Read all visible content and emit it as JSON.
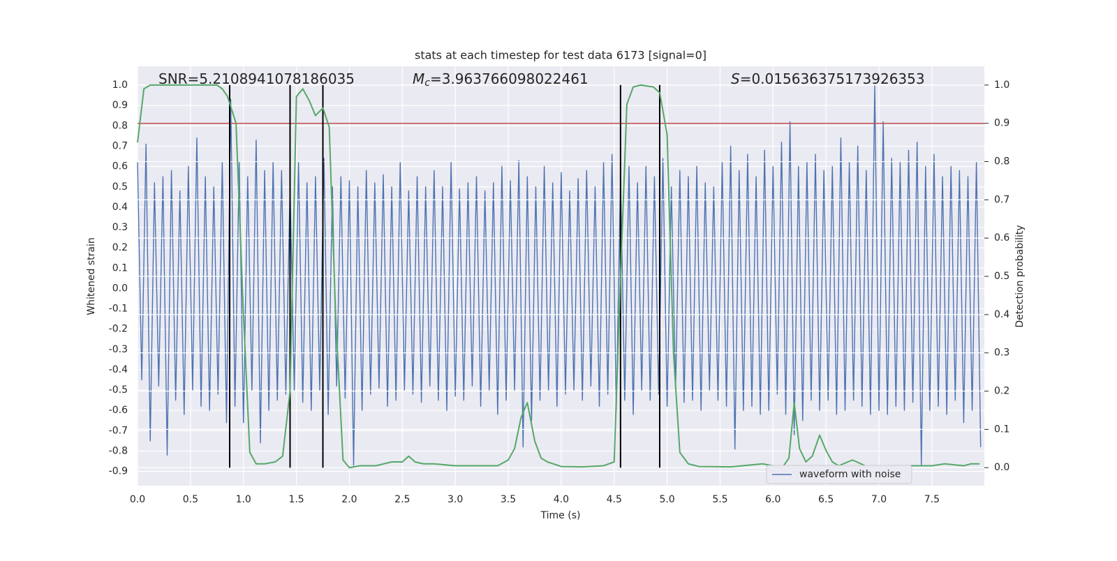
{
  "chart_data": {
    "type": "line",
    "title": "stats at each timestep for test data 6173 [signal=0]",
    "xlabel": "Time (s)",
    "ylabel": "Whitened strain",
    "y2label": "Detection probability",
    "annotations": [
      {
        "symbol": "",
        "subscript": "",
        "text": "SNR=5.2108941078186035"
      },
      {
        "symbol": "M",
        "subscript": "c",
        "text": "=3.963766098022461"
      },
      {
        "symbol": "S",
        "subscript": "",
        "text": "=0.015636375173926353"
      }
    ],
    "xlim": [
      0,
      7.995
    ],
    "xticks": [
      0.0,
      0.5,
      1.0,
      1.5,
      2.0,
      2.5,
      3.0,
      3.5,
      4.0,
      4.5,
      5.0,
      5.5,
      6.0,
      6.5,
      7.0,
      7.5
    ],
    "ylim": [
      -0.97,
      1.093
    ],
    "yticks": [
      -0.9,
      -0.8,
      -0.7,
      -0.6,
      -0.5,
      -0.4,
      -0.3,
      -0.2,
      -0.1,
      0.0,
      0.1,
      0.2,
      0.3,
      0.4,
      0.5,
      0.6,
      0.7,
      0.8,
      0.9,
      1.0
    ],
    "y2lim": [
      -0.047,
      1.049
    ],
    "y2ticks": [
      0.0,
      0.1,
      0.2,
      0.3,
      0.4,
      0.5,
      0.6,
      0.7,
      0.8,
      0.9,
      1.0
    ],
    "grid": true,
    "legend": "lower right",
    "background": "#eaeaf2",
    "series": [
      {
        "name": "waveform with noise",
        "color": "#4c72b0",
        "x": [
          0,
          0.04,
          0.08,
          0.12,
          0.16,
          0.2,
          0.24,
          0.28,
          0.32,
          0.36,
          0.4,
          0.44,
          0.48,
          0.52,
          0.56,
          0.6,
          0.64,
          0.68,
          0.72,
          0.76,
          0.8,
          0.84,
          0.88,
          0.92,
          0.96,
          1.0,
          1.04,
          1.08,
          1.12,
          1.16,
          1.2,
          1.24,
          1.28,
          1.32,
          1.36,
          1.4,
          1.44,
          1.48,
          1.52,
          1.56,
          1.6,
          1.64,
          1.68,
          1.72,
          1.76,
          1.8,
          1.84,
          1.88,
          1.92,
          1.96,
          2.0,
          2.04,
          2.08,
          2.12,
          2.16,
          2.2,
          2.24,
          2.28,
          2.32,
          2.36,
          2.4,
          2.44,
          2.48,
          2.52,
          2.56,
          2.6,
          2.64,
          2.68,
          2.72,
          2.76,
          2.8,
          2.84,
          2.88,
          2.92,
          2.96,
          3.0,
          3.04,
          3.08,
          3.12,
          3.16,
          3.2,
          3.24,
          3.28,
          3.32,
          3.36,
          3.4,
          3.44,
          3.48,
          3.52,
          3.56,
          3.6,
          3.64,
          3.68,
          3.72,
          3.76,
          3.8,
          3.84,
          3.88,
          3.92,
          3.96,
          4.0,
          4.04,
          4.08,
          4.12,
          4.16,
          4.2,
          4.24,
          4.28,
          4.32,
          4.36,
          4.4,
          4.44,
          4.48,
          4.52,
          4.56,
          4.6,
          4.64,
          4.68,
          4.72,
          4.76,
          4.8,
          4.84,
          4.88,
          4.92,
          4.96,
          5.0,
          5.04,
          5.08,
          5.12,
          5.16,
          5.2,
          5.24,
          5.28,
          5.32,
          5.36,
          5.4,
          5.44,
          5.48,
          5.52,
          5.56,
          5.6,
          5.64,
          5.68,
          5.72,
          5.76,
          5.8,
          5.84,
          5.88,
          5.92,
          5.96,
          6.0,
          6.04,
          6.08,
          6.12,
          6.16,
          6.2,
          6.24,
          6.28,
          6.32,
          6.36,
          6.4,
          6.44,
          6.48,
          6.52,
          6.56,
          6.6,
          6.64,
          6.68,
          6.72,
          6.76,
          6.8,
          6.84,
          6.88,
          6.92,
          6.96,
          7.0,
          7.04,
          7.08,
          7.12,
          7.16,
          7.2,
          7.24,
          7.28,
          7.32,
          7.36,
          7.4,
          7.44,
          7.48,
          7.52,
          7.56,
          7.6,
          7.64,
          7.68,
          7.72,
          7.76,
          7.8,
          7.84,
          7.88,
          7.92,
          7.96
        ],
        "values": [
          0.62,
          -0.45,
          0.71,
          -0.75,
          0.52,
          -0.48,
          0.55,
          -0.82,
          0.58,
          -0.55,
          0.48,
          -0.62,
          0.6,
          -0.5,
          0.74,
          -0.58,
          0.55,
          -0.6,
          0.5,
          -0.52,
          0.62,
          -0.66,
          0.93,
          -0.58,
          0.62,
          -0.66,
          0.55,
          -0.5,
          0.73,
          -0.76,
          0.58,
          -0.6,
          0.62,
          -0.55,
          0.58,
          -0.52,
          0.5,
          -0.5,
          0.62,
          -0.56,
          0.52,
          -0.6,
          0.55,
          -0.5,
          0.64,
          -0.62,
          0.5,
          -0.48,
          0.55,
          -0.54,
          0.53,
          -0.87,
          0.5,
          -0.6,
          0.58,
          -0.52,
          0.52,
          -0.49,
          0.56,
          -0.58,
          0.5,
          -0.55,
          0.62,
          -0.5,
          0.48,
          -0.52,
          0.55,
          -0.56,
          0.5,
          -0.48,
          0.58,
          -0.55,
          0.5,
          -0.6,
          0.62,
          -0.53,
          0.49,
          -0.55,
          0.52,
          -0.48,
          0.55,
          -0.58,
          0.48,
          -0.5,
          0.52,
          -0.62,
          0.6,
          -0.55,
          0.53,
          -0.5,
          0.63,
          -0.78,
          0.55,
          -0.65,
          0.5,
          -0.55,
          0.6,
          -0.5,
          0.52,
          -0.58,
          0.57,
          -0.52,
          0.48,
          -0.5,
          0.54,
          -0.55,
          0.58,
          -0.48,
          0.5,
          -0.58,
          0.62,
          -0.52,
          0.66,
          -0.6,
          0.55,
          -0.55,
          0.6,
          -0.62,
          0.52,
          -0.5,
          0.6,
          -0.55,
          0.55,
          -0.52,
          0.64,
          -0.58,
          0.5,
          -0.5,
          0.58,
          -0.56,
          0.55,
          -0.55,
          0.6,
          -0.6,
          0.52,
          -0.5,
          0.5,
          -0.55,
          0.62,
          -0.58,
          0.7,
          -0.79,
          0.58,
          -0.6,
          0.66,
          -0.58,
          0.55,
          -0.62,
          0.68,
          -0.6,
          0.6,
          -0.52,
          0.72,
          -0.62,
          0.82,
          -0.72,
          0.6,
          -0.65,
          0.62,
          -0.55,
          0.66,
          -0.6,
          0.58,
          -0.55,
          0.6,
          -0.62,
          0.74,
          -0.6,
          0.62,
          -0.55,
          0.7,
          -0.58,
          0.58,
          -0.62,
          1.0,
          -0.6,
          0.82,
          -0.62,
          0.64,
          -0.58,
          0.62,
          -0.6,
          0.68,
          -0.56,
          0.72,
          -0.87,
          0.6,
          -0.6,
          0.66,
          -0.58,
          0.55,
          -0.62,
          0.6,
          -0.55,
          0.58,
          -0.66,
          0.55,
          -0.6,
          0.62,
          -0.78
        ]
      },
      {
        "color": "#55a868",
        "axis": "y2",
        "x": [
          0,
          0.06,
          0.12,
          0.5,
          0.75,
          0.8,
          0.85,
          0.93,
          1.0,
          1.06,
          1.12,
          1.2,
          1.3,
          1.37,
          1.44,
          1.5,
          1.56,
          1.62,
          1.68,
          1.75,
          1.81,
          1.87,
          1.94,
          2.0,
          2.1,
          2.25,
          2.4,
          2.5,
          2.56,
          2.62,
          2.7,
          2.8,
          3.0,
          3.2,
          3.4,
          3.5,
          3.56,
          3.62,
          3.68,
          3.75,
          3.81,
          3.87,
          4.0,
          4.2,
          4.4,
          4.5,
          4.56,
          4.62,
          4.68,
          4.75,
          4.87,
          4.93,
          5.0,
          5.06,
          5.12,
          5.2,
          5.3,
          5.6,
          5.9,
          6.0,
          6.1,
          6.15,
          6.2,
          6.25,
          6.31,
          6.37,
          6.44,
          6.5,
          6.56,
          6.62,
          6.75,
          6.87,
          7.0,
          7.2,
          7.5,
          7.62,
          7.8,
          7.87,
          7.95
        ],
        "values": [
          0.85,
          0.99,
          1.0,
          1.0,
          1.0,
          0.99,
          0.97,
          0.9,
          0.4,
          0.04,
          0.01,
          0.01,
          0.015,
          0.03,
          0.2,
          0.97,
          0.99,
          0.96,
          0.92,
          0.94,
          0.89,
          0.4,
          0.02,
          0.0,
          0.005,
          0.005,
          0.015,
          0.015,
          0.03,
          0.015,
          0.01,
          0.01,
          0.005,
          0.005,
          0.005,
          0.02,
          0.05,
          0.13,
          0.17,
          0.07,
          0.025,
          0.015,
          0.003,
          0.002,
          0.005,
          0.015,
          0.5,
          0.95,
          0.995,
          1.0,
          0.995,
          0.98,
          0.87,
          0.3,
          0.04,
          0.01,
          0.003,
          0.002,
          0.01,
          0.005,
          0.005,
          0.025,
          0.17,
          0.05,
          0.015,
          0.03,
          0.085,
          0.045,
          0.015,
          0.005,
          0.02,
          0.005,
          0.003,
          0.005,
          0.005,
          0.01,
          0.005,
          0.01,
          0.01
        ]
      }
    ],
    "vlines": {
      "x": [
        0.87,
        1.44,
        1.75,
        4.56,
        4.93
      ],
      "ymin": 0,
      "ymax": 1,
      "axis": "y2",
      "color": "#000000"
    },
    "hlines": {
      "values": [
        0.9
      ],
      "axis": "y2",
      "color": "#c44e52"
    }
  }
}
